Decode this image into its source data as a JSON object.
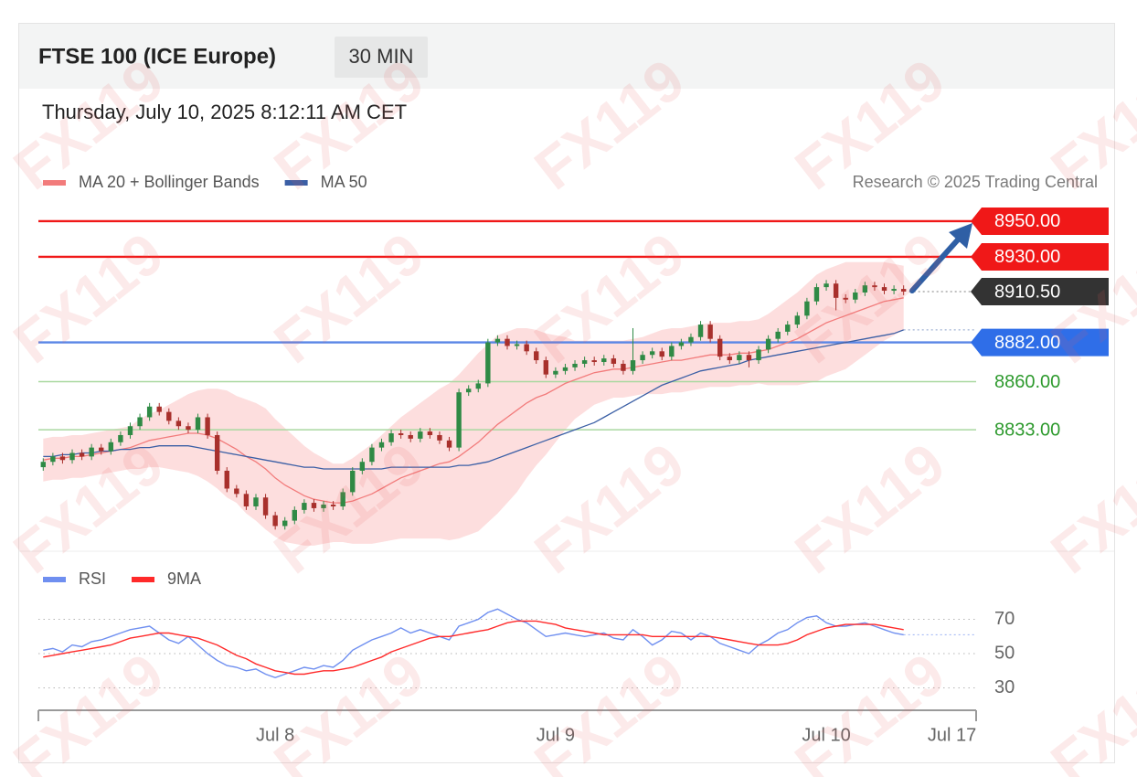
{
  "watermark": "FX119",
  "chart_data": [
    {
      "type": "candlestick",
      "title": "FTSE 100 (ICE Europe)",
      "interval": "30 MIN",
      "timestamp": "Thursday, July 10, 2025 8:12:11 AM CET",
      "source": "Research © 2025 Trading Central",
      "categories": [
        null,
        null,
        null,
        null,
        null,
        null,
        null,
        null,
        null,
        null,
        null,
        null,
        null,
        null,
        null,
        null,
        null,
        null,
        null,
        null,
        null,
        null,
        null,
        null,
        null,
        null,
        null,
        null,
        null,
        null,
        null,
        null,
        null,
        null,
        null,
        null,
        null,
        null,
        null,
        null,
        null,
        null,
        null,
        null,
        null,
        null,
        null,
        null,
        null,
        null,
        null,
        null,
        null,
        null,
        null,
        null,
        null,
        null,
        null,
        null,
        null,
        null,
        null,
        null,
        null,
        null,
        null,
        null,
        null,
        null,
        null,
        null,
        null,
        null,
        null,
        null,
        null,
        null,
        null,
        null,
        null,
        null,
        null,
        null,
        null,
        null,
        null,
        null,
        null,
        null
      ],
      "open": [
        8812,
        8815,
        8818,
        8816,
        8820,
        8818,
        8823,
        8821,
        8826,
        8830,
        8835,
        8840,
        8846,
        8843,
        8838,
        8835,
        8833,
        8840,
        8830,
        8810,
        8800,
        8797,
        8790,
        8795,
        8785,
        8779,
        8782,
        8788,
        8792,
        8789,
        8791,
        8790,
        8798,
        8810,
        8815,
        8823,
        8826,
        8831,
        8830,
        8828,
        8832,
        8830,
        8827,
        8823,
        8854,
        8856,
        8859,
        8882,
        8884,
        8880,
        8881,
        8877,
        8872,
        8864,
        8866,
        8868,
        8870,
        8872,
        8871,
        8873,
        8870,
        8866,
        8872,
        8875,
        8877,
        8874,
        8880,
        8882,
        8885,
        8892,
        8884,
        8874,
        8872,
        8875,
        8872,
        8878,
        8884,
        8888,
        8892,
        8897,
        8905,
        8913,
        8915,
        8907,
        8906,
        8910,
        8914,
        8913,
        8911,
        8912
      ],
      "high": [
        8817,
        8820,
        8820,
        8822,
        8822,
        8825,
        8825,
        8828,
        8832,
        8837,
        8842,
        8848,
        8848,
        8845,
        8840,
        8837,
        8842,
        8842,
        8832,
        8812,
        8802,
        8799,
        8797,
        8797,
        8787,
        8784,
        8790,
        8794,
        8794,
        8793,
        8793,
        8800,
        8812,
        8817,
        8825,
        8828,
        8833,
        8833,
        8832,
        8834,
        8834,
        8832,
        8829,
        8856,
        8858,
        8861,
        8884,
        8886,
        8886,
        8883,
        8883,
        8879,
        8874,
        8868,
        8870,
        8872,
        8874,
        8874,
        8875,
        8875,
        8872,
        8890,
        8877,
        8879,
        8879,
        8882,
        8884,
        8887,
        8894,
        8894,
        8886,
        8876,
        8877,
        8877,
        8880,
        8886,
        8890,
        8894,
        8899,
        8907,
        8915,
        8917,
        8917,
        8909,
        8912,
        8916,
        8916,
        8915,
        8914,
        8914
      ],
      "low": [
        8810,
        8813,
        8814,
        8814,
        8816,
        8816,
        8819,
        8819,
        8824,
        8828,
        8833,
        8838,
        8841,
        8836,
        8833,
        8831,
        8831,
        8828,
        8808,
        8798,
        8795,
        8788,
        8788,
        8783,
        8777,
        8777,
        8780,
        8786,
        8787,
        8787,
        8788,
        8788,
        8796,
        8808,
        8813,
        8821,
        8824,
        8828,
        8826,
        8826,
        8828,
        8825,
        8821,
        8821,
        8852,
        8854,
        8857,
        8880,
        8878,
        8878,
        8875,
        8870,
        8862,
        8862,
        8864,
        8866,
        8868,
        8869,
        8869,
        8868,
        8864,
        8864,
        8870,
        8873,
        8872,
        8872,
        8878,
        8880,
        8883,
        8882,
        8872,
        8870,
        8870,
        8868,
        8870,
        8876,
        8882,
        8886,
        8890,
        8895,
        8903,
        8911,
        8900,
        8904,
        8904,
        8908,
        8911,
        8909,
        8909,
        8908.5
      ],
      "close": [
        8815,
        8818,
        8816,
        8820,
        8818,
        8823,
        8821,
        8826,
        8830,
        8835,
        8840,
        8846,
        8843,
        8838,
        8835,
        8833,
        8840,
        8830,
        8810,
        8800,
        8797,
        8790,
        8795,
        8785,
        8779,
        8782,
        8788,
        8792,
        8789,
        8791,
        8790,
        8798,
        8810,
        8815,
        8823,
        8826,
        8831,
        8830,
        8828,
        8832,
        8830,
        8827,
        8823,
        8854,
        8856,
        8859,
        8882,
        8884,
        8880,
        8881,
        8877,
        8872,
        8864,
        8866,
        8868,
        8870,
        8872,
        8871,
        8873,
        8870,
        8866,
        8872,
        8875,
        8877,
        8874,
        8880,
        8882,
        8885,
        8892,
        8884,
        8874,
        8872,
        8875,
        8872,
        8878,
        8884,
        8888,
        8892,
        8897,
        8905,
        8913,
        8915,
        8907,
        8906,
        8910,
        8914,
        8913,
        8911,
        8912,
        8910.5
      ],
      "up_color": "#2f8a45",
      "down_color": "#a8302c",
      "series": [
        {
          "name": "MA 20 + Bollinger Bands",
          "color": "#f27b7b",
          "band_color": "#fcd3d3",
          "values": [
            8816,
            8817,
            8817,
            8818,
            8818,
            8819,
            8820,
            8821,
            8822,
            8823,
            8825,
            8827,
            8828,
            8829,
            8830,
            8831,
            8831,
            8830,
            8828,
            8825,
            8822,
            8818,
            8815,
            8811,
            8806,
            8802,
            8799,
            8796,
            8794,
            8793,
            8792,
            8792,
            8793,
            8795,
            8797,
            8800,
            8803,
            8806,
            8808,
            8810,
            8812,
            8814,
            8815,
            8818,
            8822,
            8826,
            8831,
            8836,
            8840,
            8844,
            8848,
            8851,
            8853,
            8856,
            8859,
            8861,
            8863,
            8865,
            8866,
            8867,
            8867,
            8868,
            8869,
            8870,
            8871,
            8872,
            8872,
            8873,
            8874,
            8875,
            8875,
            8875,
            8876,
            8876,
            8877,
            8878,
            8880,
            8882,
            8884,
            8887,
            8890,
            8893,
            8895,
            8897,
            8899,
            8901,
            8903,
            8905,
            8906,
            8907
          ],
          "upper": [
            8828,
            8829,
            8829,
            8830,
            8830,
            8831,
            8832,
            8833,
            8834,
            8835,
            8839,
            8842,
            8844,
            8847,
            8850,
            8853,
            8855,
            8856,
            8856,
            8855,
            8852,
            8850,
            8848,
            8845,
            8839,
            8834,
            8829,
            8824,
            8820,
            8817,
            8814,
            8814,
            8817,
            8821,
            8825,
            8830,
            8835,
            8840,
            8844,
            8848,
            8852,
            8856,
            8859,
            8864,
            8870,
            8876,
            8881,
            8886,
            8888,
            8890,
            8890,
            8889,
            8887,
            8886,
            8885,
            8883,
            8883,
            8883,
            8883,
            8883,
            8883,
            8884,
            8885,
            8887,
            8889,
            8890,
            8890,
            8891,
            8892,
            8893,
            8893,
            8893,
            8894,
            8894,
            8895,
            8898,
            8902,
            8906,
            8910,
            8915,
            8920,
            8923,
            8925,
            8927,
            8927,
            8927,
            8927,
            8927,
            8926,
            8925
          ],
          "lower": [
            8804,
            8805,
            8805,
            8806,
            8806,
            8807,
            8808,
            8809,
            8810,
            8811,
            8811,
            8812,
            8812,
            8811,
            8810,
            8809,
            8807,
            8804,
            8800,
            8795,
            8792,
            8786,
            8782,
            8777,
            8773,
            8770,
            8769,
            8768,
            8768,
            8769,
            8770,
            8770,
            8769,
            8769,
            8769,
            8770,
            8771,
            8772,
            8772,
            8772,
            8772,
            8772,
            8771,
            8772,
            8774,
            8776,
            8781,
            8786,
            8792,
            8798,
            8806,
            8813,
            8819,
            8826,
            8833,
            8839,
            8843,
            8847,
            8849,
            8851,
            8851,
            8852,
            8853,
            8853,
            8853,
            8854,
            8854,
            8855,
            8856,
            8857,
            8857,
            8857,
            8858,
            8858,
            8859,
            8858,
            8858,
            8858,
            8858,
            8859,
            8860,
            8863,
            8865,
            8867,
            8871,
            8875,
            8879,
            8883,
            8886,
            8889
          ]
        },
        {
          "name": "MA 50",
          "color": "#3b5fa5",
          "extend": true,
          "values": [
            8818,
            8818,
            8819,
            8819,
            8820,
            8820,
            8821,
            8821,
            8822,
            8822,
            8823,
            8823,
            8824,
            8824,
            8824,
            8824,
            8823,
            8822,
            8821,
            8820,
            8819,
            8818,
            8817,
            8816,
            8815,
            8814,
            8813,
            8812,
            8812,
            8811,
            8811,
            8811,
            8811,
            8811,
            8811,
            8811,
            8812,
            8812,
            8812,
            8812,
            8812,
            8812,
            8812,
            8813,
            8813,
            8814,
            8815,
            8817,
            8819,
            8821,
            8823,
            8825,
            8827,
            8829,
            8831,
            8833,
            8835,
            8837,
            8840,
            8843,
            8846,
            8849,
            8852,
            8855,
            8858,
            8860,
            8862,
            8864,
            8866,
            8867,
            8868,
            8869,
            8870,
            8872,
            8873,
            8874,
            8875,
            8876,
            8877,
            8878,
            8879,
            8880,
            8881,
            8882,
            8883,
            8884,
            8885,
            8886,
            8887,
            8889
          ]
        }
      ],
      "levels": [
        {
          "value": 8950,
          "label": "8950.00",
          "color": "#f01818",
          "line": "full",
          "line_color": "#f01818",
          "tag": true
        },
        {
          "value": 8930,
          "label": "8930.00",
          "color": "#f01818",
          "line": "full",
          "line_color": "#f01818",
          "tag": true
        },
        {
          "value": 8910.5,
          "label": "8910.50",
          "color": "#333333",
          "line": "dotted",
          "line_color": "#999999",
          "tag": true
        },
        {
          "value": 8882,
          "label": "8882.00",
          "color": "#2f6ee8",
          "line": "full",
          "line_color": "#5a86e6",
          "tag": true
        },
        {
          "value": 8860,
          "label": "8860.00",
          "color": "#2e9a2e",
          "line": "full",
          "line_color": "#a9d8a0",
          "tag": false
        },
        {
          "value": 8833,
          "label": "8833.00",
          "color": "#2e9a2e",
          "line": "full",
          "line_color": "#a9d8a0",
          "tag": false
        }
      ],
      "xlim": [
        -0.5,
        96.5
      ],
      "ylim": [
        8766.4,
        8958.7
      ]
    },
    {
      "type": "line",
      "series": [
        {
          "name": "RSI",
          "color": "#6f8ff0",
          "extend": true,
          "values": [
            52,
            53,
            51,
            55,
            54,
            57,
            58,
            60,
            62,
            64,
            65,
            66,
            62,
            58,
            56,
            60,
            55,
            50,
            46,
            43,
            42,
            40,
            41,
            38,
            36,
            38,
            40,
            42,
            41,
            43,
            42,
            46,
            52,
            55,
            58,
            60,
            62,
            65,
            62,
            64,
            62,
            60,
            58,
            66,
            68,
            70,
            74,
            76,
            73,
            70,
            68,
            64,
            60,
            61,
            62,
            61,
            60,
            61,
            62,
            59,
            58,
            64,
            60,
            55,
            58,
            63,
            62,
            58,
            62,
            60,
            56,
            54,
            52,
            50,
            55,
            58,
            62,
            64,
            68,
            71,
            72,
            68,
            66,
            66,
            67,
            68,
            66,
            64,
            62,
            61
          ]
        },
        {
          "name": "9MA",
          "color": "#ff2a2a",
          "values": [
            48,
            49,
            50,
            51,
            52,
            53,
            54,
            55,
            57,
            59,
            60,
            61,
            62,
            62,
            61,
            60,
            59,
            57,
            55,
            52,
            49,
            47,
            44,
            42,
            40,
            39,
            38,
            38,
            39,
            40,
            40,
            41,
            42,
            44,
            46,
            48,
            51,
            53,
            55,
            57,
            59,
            60,
            60,
            61,
            62,
            63,
            64,
            66,
            68,
            69,
            69,
            69,
            68,
            67,
            65,
            64,
            63,
            62,
            61,
            61,
            61,
            61,
            61,
            60,
            60,
            60,
            60,
            60,
            60,
            60,
            59,
            58,
            57,
            56,
            55,
            55,
            55,
            56,
            58,
            61,
            63,
            65,
            66,
            67,
            67,
            67,
            67,
            66,
            65,
            64
          ]
        }
      ],
      "xlim": [
        -0.5,
        96.5
      ],
      "xticks": [
        {
          "value": 24,
          "label": "Jul 8"
        },
        {
          "value": 53,
          "label": "Jul 9"
        },
        {
          "value": 81,
          "label": "Jul 10"
        },
        {
          "value": 94,
          "label": "Jul 17"
        }
      ],
      "ylim": [
        18,
        82
      ],
      "yticks": [
        30,
        50,
        70
      ]
    }
  ]
}
